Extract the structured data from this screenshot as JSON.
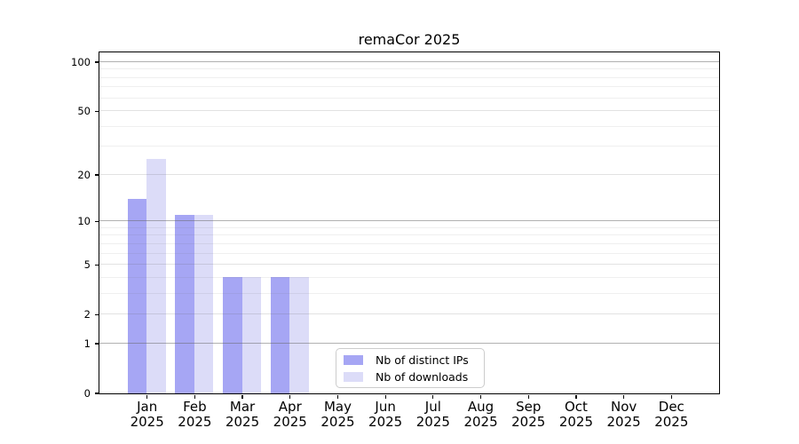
{
  "title": "remaCor 2025",
  "chart_data": {
    "type": "bar",
    "title": "remaCor 2025",
    "categories": [
      "Jan\n2025",
      "Feb\n2025",
      "Mar\n2025",
      "Apr\n2025",
      "May\n2025",
      "Jun\n2025",
      "Jul\n2025",
      "Aug\n2025",
      "Sep\n2025",
      "Oct\n2025",
      "Nov\n2025",
      "Dec\n2025"
    ],
    "series": [
      {
        "name": "Nb of distinct IPs",
        "color": "#a6a6f4",
        "values": [
          14,
          11,
          4,
          4,
          0,
          0,
          0,
          0,
          0,
          0,
          0,
          0
        ]
      },
      {
        "name": "Nb of downloads",
        "color": "#dcdcf8",
        "values": [
          25,
          11,
          4,
          4,
          0,
          0,
          0,
          0,
          0,
          0,
          0,
          0
        ]
      }
    ],
    "y_scale": "log(1+x)",
    "y_ticks": [
      0,
      1,
      2,
      5,
      10,
      20,
      50,
      100
    ],
    "y_mid_ticks": [
      2,
      5,
      20,
      50
    ],
    "y_strong_ticks": [
      1,
      10,
      100
    ],
    "y_minor_gridlines": [
      3,
      4,
      6,
      7,
      8,
      9,
      30,
      40,
      60,
      70,
      80,
      90
    ],
    "ylim": [
      0,
      115
    ],
    "xlabel": "",
    "ylabel": "",
    "grid": "both",
    "legend_position": "inside lower center"
  },
  "legend": {
    "items": [
      {
        "label": "Nb of distinct IPs",
        "swatch": "#a6a6f4"
      },
      {
        "label": "Nb of downloads",
        "swatch": "#dcdcf8"
      }
    ]
  },
  "colors": {
    "background": "#ffffff",
    "spine": "#000000",
    "grid_strong": "rgba(100,100,100,0.50)",
    "grid_mid": "rgba(100,100,100,0.19)",
    "grid_minor": "rgba(100,100,100,0.10)",
    "legend_border": "#cccccc",
    "tick_label": "#000000"
  }
}
